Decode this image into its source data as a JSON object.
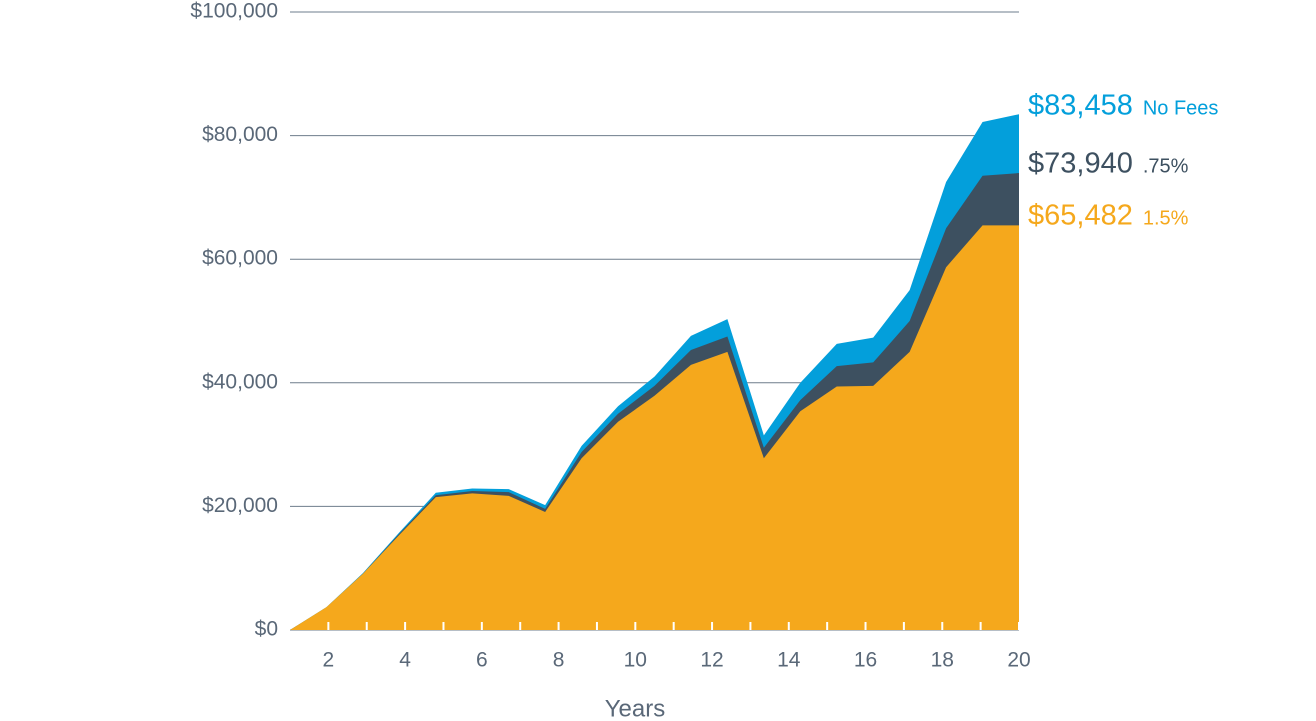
{
  "chart_data": {
    "type": "area",
    "x_label": "Years",
    "x": [
      1,
      1.95,
      2.9,
      3.85,
      4.8,
      5.75,
      6.7,
      7.65,
      8.6,
      9.55,
      10.5,
      11.45,
      12.4,
      13.35,
      14.3,
      15.25,
      16.2,
      17.15,
      18.1,
      19.05,
      20
    ],
    "series": [
      {
        "name": "No Fees",
        "color": "#039fdb",
        "values": [
          0,
          3700,
          9200,
          15800,
          22200,
          22900,
          22800,
          20200,
          29800,
          36200,
          41000,
          47600,
          50300,
          31500,
          40000,
          46300,
          47300,
          55000,
          72500,
          82200,
          83458
        ],
        "value_labels": [
          null,
          null,
          null,
          null,
          null,
          null,
          null,
          null,
          null,
          null,
          null,
          null,
          null,
          null,
          null,
          null,
          null,
          null,
          null,
          null,
          "$83,458"
        ]
      },
      {
        "name": ".75%",
        "color": "#3d5060",
        "values": [
          0,
          3600,
          9100,
          15600,
          21800,
          22500,
          22300,
          19600,
          28800,
          35000,
          39500,
          45300,
          47500,
          29500,
          37200,
          42700,
          43300,
          50000,
          65000,
          73500,
          73940
        ],
        "value_labels": [
          null,
          null,
          null,
          null,
          null,
          null,
          null,
          null,
          null,
          null,
          null,
          null,
          null,
          null,
          null,
          null,
          null,
          null,
          null,
          null,
          "$73,940"
        ]
      },
      {
        "name": "1.5%",
        "color": "#f5a81c",
        "values": [
          0,
          3700,
          9100,
          15400,
          21500,
          22100,
          21700,
          19100,
          27800,
          33700,
          37900,
          42900,
          45000,
          27800,
          35400,
          39400,
          39500,
          45000,
          58700,
          65482,
          65482
        ],
        "value_labels": [
          null,
          null,
          null,
          null,
          null,
          null,
          null,
          null,
          null,
          null,
          null,
          null,
          null,
          null,
          null,
          null,
          null,
          null,
          null,
          null,
          "$65,482"
        ]
      }
    ],
    "xlim": [
      1,
      20
    ],
    "xticks": [
      2,
      4,
      6,
      8,
      10,
      12,
      14,
      16,
      18,
      20
    ],
    "xminorticks": [
      3,
      5,
      7,
      9,
      11,
      13,
      15,
      17,
      19
    ],
    "ylim": [
      0,
      100000
    ],
    "yticks": [
      {
        "value": 0,
        "label": "$0"
      },
      {
        "value": 20000,
        "label": "$20,000"
      },
      {
        "value": 40000,
        "label": "$40,000"
      },
      {
        "value": 60000,
        "label": "$60,000"
      },
      {
        "value": 80000,
        "label": "$80,000"
      },
      {
        "value": 100000,
        "label": "$100,000"
      }
    ],
    "grid": true
  }
}
